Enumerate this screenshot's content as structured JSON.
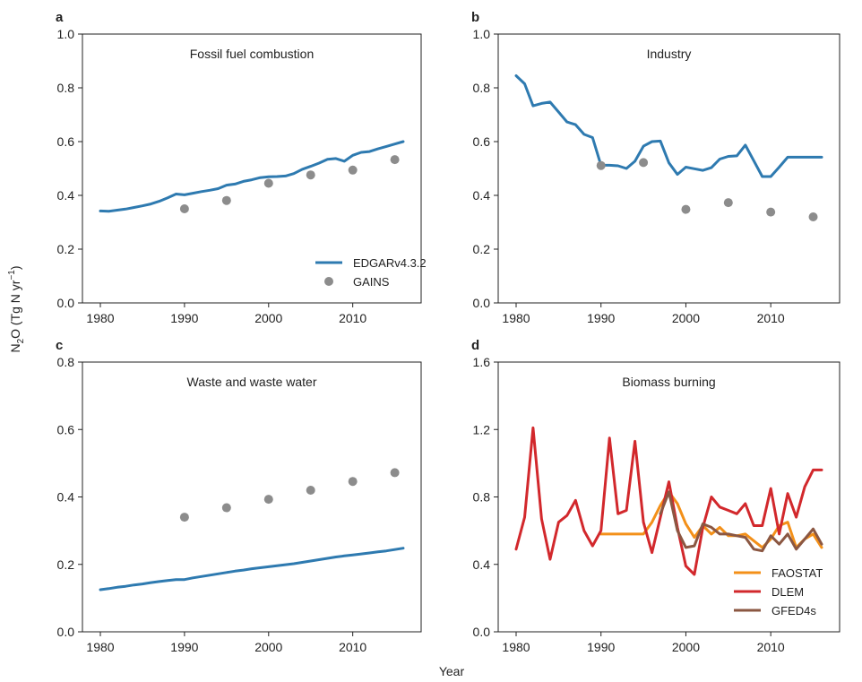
{
  "figure": {
    "ylabel_main": "N",
    "ylabel_sub": "2",
    "ylabel_tail": "O (Tg N yr",
    "ylabel_sup": "−1",
    "ylabel_close": ")",
    "xlabel": "Year"
  },
  "colors": {
    "edgar": "#2e7ab0",
    "gains": "#8c8c8c",
    "faostat": "#f39019",
    "dlem": "#d2282c",
    "gfed4s": "#8b5742"
  },
  "chart_data": [
    {
      "panel_label": "a",
      "type": "line",
      "title": "Fossil fuel combustion",
      "xlim": [
        1980,
        2016
      ],
      "ylim": [
        0,
        1.0
      ],
      "xticks": [
        1980,
        1990,
        2000,
        2010
      ],
      "yticks": [
        "0.0",
        "0.2",
        "0.4",
        "0.6",
        "0.8",
        "1.0"
      ],
      "ytick_values": [
        0,
        0.2,
        0.4,
        0.6,
        0.8,
        1.0
      ],
      "legend": "bottom-right",
      "series": [
        {
          "name": "EDGARv4.3.2",
          "kind": "line",
          "color_key": "edgar",
          "x": [
            1980,
            1981,
            1982,
            1983,
            1984,
            1985,
            1986,
            1987,
            1988,
            1989,
            1990,
            1991,
            1992,
            1993,
            1994,
            1995,
            1996,
            1997,
            1998,
            1999,
            2000,
            2001,
            2002,
            2003,
            2004,
            2005,
            2006,
            2007,
            2008,
            2009,
            2010,
            2011,
            2012,
            2013,
            2014,
            2015,
            2016
          ],
          "y": [
            0.342,
            0.341,
            0.345,
            0.349,
            0.355,
            0.361,
            0.368,
            0.378,
            0.391,
            0.405,
            0.402,
            0.408,
            0.414,
            0.419,
            0.425,
            0.438,
            0.442,
            0.452,
            0.458,
            0.466,
            0.469,
            0.47,
            0.472,
            0.481,
            0.497,
            0.508,
            0.52,
            0.534,
            0.537,
            0.527,
            0.549,
            0.56,
            0.563,
            0.573,
            0.582,
            0.591,
            0.6
          ]
        },
        {
          "name": "GAINS",
          "kind": "scatter",
          "color_key": "gains",
          "x": [
            1990,
            1995,
            2000,
            2005,
            2010,
            2015
          ],
          "y": [
            0.35,
            0.381,
            0.445,
            0.476,
            0.494,
            0.533
          ]
        }
      ]
    },
    {
      "panel_label": "b",
      "type": "line",
      "title": "Industry",
      "xlim": [
        1980,
        2016
      ],
      "ylim": [
        0,
        1.0
      ],
      "xticks": [
        1980,
        1990,
        2000,
        2010
      ],
      "yticks": [
        "0.0",
        "0.2",
        "0.4",
        "0.6",
        "0.8",
        "1.0"
      ],
      "ytick_values": [
        0,
        0.2,
        0.4,
        0.6,
        0.8,
        1.0
      ],
      "legend": "none",
      "series": [
        {
          "name": "EDGARv4.3.2",
          "kind": "line",
          "color_key": "edgar",
          "x": [
            1980,
            1981,
            1982,
            1983,
            1984,
            1985,
            1986,
            1987,
            1988,
            1989,
            1990,
            1991,
            1992,
            1993,
            1994,
            1995,
            1996,
            1997,
            1998,
            1999,
            2000,
            2001,
            2002,
            2003,
            2004,
            2005,
            2006,
            2007,
            2008,
            2009,
            2010,
            2011,
            2012,
            2013,
            2014,
            2015,
            2016
          ],
          "y": [
            0.845,
            0.815,
            0.733,
            0.742,
            0.747,
            0.71,
            0.673,
            0.663,
            0.627,
            0.615,
            0.512,
            0.512,
            0.51,
            0.5,
            0.527,
            0.583,
            0.6,
            0.602,
            0.521,
            0.478,
            0.505,
            0.499,
            0.493,
            0.503,
            0.535,
            0.545,
            0.547,
            0.587,
            0.529,
            0.47,
            0.47,
            0.505,
            0.542,
            0.542,
            0.542,
            0.542,
            0.542
          ]
        },
        {
          "name": "GAINS",
          "kind": "scatter",
          "color_key": "gains",
          "x": [
            1990,
            1995,
            2000,
            2005,
            2010,
            2015
          ],
          "y": [
            0.511,
            0.522,
            0.348,
            0.373,
            0.338,
            0.32
          ]
        }
      ]
    },
    {
      "panel_label": "c",
      "type": "line",
      "title": "Waste and waste water",
      "xlim": [
        1980,
        2016
      ],
      "ylim": [
        0,
        0.8
      ],
      "xticks": [
        1980,
        1990,
        2000,
        2010
      ],
      "yticks": [
        "0.0",
        "0.2",
        "0.4",
        "0.6",
        "0.8"
      ],
      "ytick_values": [
        0,
        0.2,
        0.4,
        0.6,
        0.8
      ],
      "legend": "none",
      "series": [
        {
          "name": "EDGARv4.3.2",
          "kind": "line",
          "color_key": "edgar",
          "x": [
            1980,
            1981,
            1982,
            1983,
            1984,
            1985,
            1986,
            1987,
            1988,
            1989,
            1990,
            1991,
            1992,
            1993,
            1994,
            1995,
            1996,
            1997,
            1998,
            1999,
            2000,
            2001,
            2002,
            2003,
            2004,
            2005,
            2006,
            2007,
            2008,
            2009,
            2010,
            2011,
            2012,
            2013,
            2014,
            2015,
            2016
          ],
          "y": [
            0.125,
            0.128,
            0.132,
            0.135,
            0.139,
            0.142,
            0.146,
            0.149,
            0.152,
            0.155,
            0.155,
            0.16,
            0.164,
            0.168,
            0.172,
            0.176,
            0.18,
            0.183,
            0.187,
            0.19,
            0.193,
            0.196,
            0.199,
            0.202,
            0.206,
            0.21,
            0.214,
            0.218,
            0.222,
            0.225,
            0.228,
            0.231,
            0.234,
            0.237,
            0.24,
            0.244,
            0.248
          ]
        },
        {
          "name": "GAINS",
          "kind": "scatter",
          "color_key": "gains",
          "x": [
            1990,
            1995,
            2000,
            2005,
            2010,
            2015
          ],
          "y": [
            0.34,
            0.368,
            0.393,
            0.42,
            0.446,
            0.472
          ]
        }
      ]
    },
    {
      "panel_label": "d",
      "type": "line",
      "title": "Biomass burning",
      "xlim": [
        1980,
        2016
      ],
      "ylim": [
        0,
        1.6
      ],
      "xticks": [
        1980,
        1990,
        2000,
        2010
      ],
      "yticks": [
        "0.0",
        "0.4",
        "0.8",
        "1.2",
        "1.6"
      ],
      "ytick_values": [
        0,
        0.4,
        0.8,
        1.2,
        1.6
      ],
      "legend": "bottom-right",
      "series": [
        {
          "name": "FAOSTAT",
          "kind": "line",
          "color_key": "faostat",
          "x": [
            1990,
            1991,
            1992,
            1993,
            1994,
            1995,
            1996,
            1997,
            1998,
            1999,
            2000,
            2001,
            2002,
            2003,
            2004,
            2005,
            2006,
            2007,
            2008,
            2009,
            2010,
            2011,
            2012,
            2013,
            2014,
            2015,
            2016
          ],
          "y": [
            0.58,
            0.58,
            0.58,
            0.58,
            0.58,
            0.58,
            0.65,
            0.75,
            0.83,
            0.76,
            0.64,
            0.56,
            0.63,
            0.58,
            0.62,
            0.57,
            0.57,
            0.58,
            0.54,
            0.5,
            0.55,
            0.63,
            0.65,
            0.5,
            0.55,
            0.58,
            0.5
          ]
        },
        {
          "name": "DLEM",
          "kind": "line",
          "color_key": "dlem",
          "x": [
            1980,
            1981,
            1982,
            1983,
            1984,
            1985,
            1986,
            1987,
            1988,
            1989,
            1990,
            1991,
            1992,
            1993,
            1994,
            1995,
            1996,
            1997,
            1998,
            1999,
            2000,
            2001,
            2002,
            2003,
            2004,
            2005,
            2006,
            2007,
            2008,
            2009,
            2010,
            2011,
            2012,
            2013,
            2014,
            2015,
            2016
          ],
          "y": [
            0.49,
            0.68,
            1.21,
            0.67,
            0.43,
            0.65,
            0.69,
            0.78,
            0.6,
            0.51,
            0.6,
            1.15,
            0.7,
            0.72,
            1.13,
            0.65,
            0.47,
            0.68,
            0.89,
            0.62,
            0.39,
            0.34,
            0.62,
            0.8,
            0.74,
            0.72,
            0.7,
            0.76,
            0.63,
            0.63,
            0.85,
            0.58,
            0.82,
            0.68,
            0.86,
            0.96,
            0.96
          ]
        },
        {
          "name": "GFED4s",
          "kind": "line",
          "color_key": "gfed4s",
          "x": [
            1997,
            1998,
            1999,
            2000,
            2001,
            2002,
            2003,
            2004,
            2005,
            2006,
            2007,
            2008,
            2009,
            2010,
            2011,
            2012,
            2013,
            2014,
            2015,
            2016
          ],
          "y": [
            0.7,
            0.83,
            0.6,
            0.5,
            0.51,
            0.64,
            0.62,
            0.58,
            0.58,
            0.57,
            0.56,
            0.49,
            0.48,
            0.57,
            0.52,
            0.58,
            0.49,
            0.55,
            0.61,
            0.52
          ]
        }
      ]
    }
  ]
}
